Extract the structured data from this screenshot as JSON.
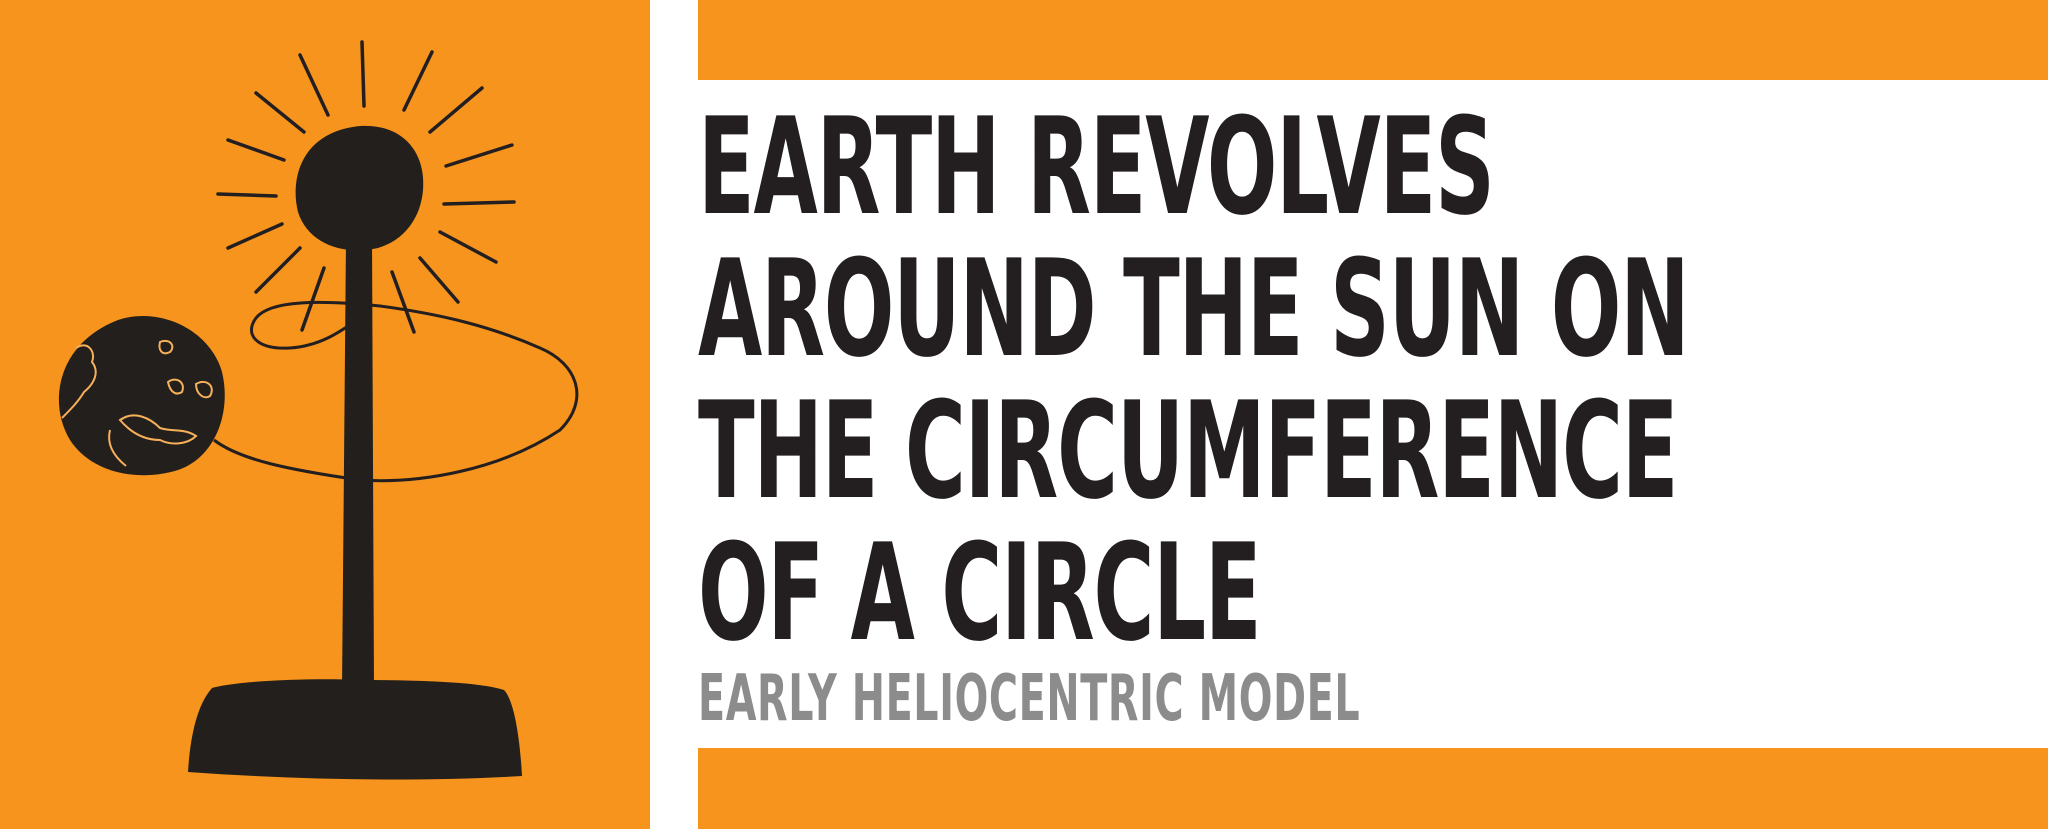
{
  "headline": {
    "line1": "EARTH REVOLVES",
    "line2": "AROUND THE SUN ON",
    "line3": "THE CIRCUMFERENCE",
    "line4": "OF A CIRCLE"
  },
  "subtitle": "EARLY HELIOCENTRIC MODEL",
  "colors": {
    "accent_orange": "#f7941d",
    "ink": "#231f20",
    "subtitle_gray": "#8c8c8c",
    "background": "#ffffff"
  },
  "icons": {
    "sun": "sun-icon",
    "earth": "earth-icon",
    "stand": "stand-icon",
    "orbit": "orbit-icon"
  }
}
